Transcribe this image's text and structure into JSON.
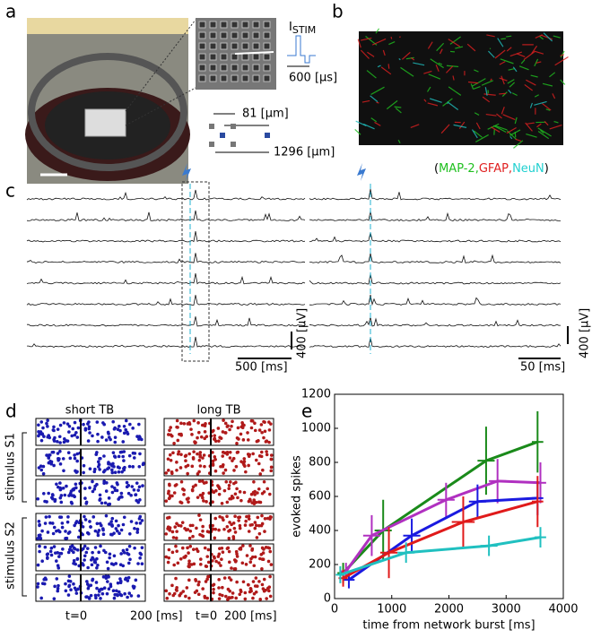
{
  "panels": {
    "a": {
      "label": "a",
      "stim_label": "I",
      "stim_sub": "STIM",
      "pulse": "600 [µs]",
      "pitch": "81 [µm]",
      "spacing": "1296 [µm]"
    },
    "b": {
      "label": "b",
      "stain_open": "(",
      "stains": [
        "MAP-2,",
        "GFAP,",
        "NeuN"
      ],
      "stain_close": ")"
    },
    "c": {
      "label": "c",
      "scale_left_x": "500 [ms]",
      "scale_left_y": "400 [µV]",
      "scale_right_x": "50 [ms]",
      "scale_right_y": "400 [µV]"
    },
    "d": {
      "label": "d",
      "col1": "short TB",
      "col2": "long TB",
      "group1": "stimulus S1",
      "group2": "stimulus S2",
      "t0_left": "t=0",
      "scale_left": "200 [ms]",
      "t0_right": "t=0",
      "scale_right": "200 [ms]"
    },
    "e": {
      "label": "e"
    }
  },
  "chart_data": {
    "type": "line",
    "xlabel": "time from network burst [ms]",
    "ylabel": "evoked spikes",
    "xlim": [
      0,
      4000
    ],
    "ylim": [
      0,
      1200
    ],
    "xticks": [
      0,
      1000,
      2000,
      3000,
      4000
    ],
    "yticks": [
      0,
      200,
      400,
      600,
      800,
      1000,
      1200
    ],
    "series": [
      {
        "color": "#1a8a1a",
        "x": [
          150,
          850,
          2650,
          3550
        ],
        "values": [
          150,
          400,
          810,
          920
        ],
        "xerr": [
          100,
          150,
          150,
          100
        ],
        "yerr": [
          60,
          180,
          200,
          180
        ]
      },
      {
        "color": "#b030c0",
        "x": [
          200,
          650,
          1950,
          2850,
          3600
        ],
        "values": [
          160,
          370,
          580,
          690,
          680
        ],
        "xerr": [
          100,
          150,
          150,
          150,
          100
        ],
        "yerr": [
          50,
          120,
          100,
          130,
          120
        ]
      },
      {
        "color": "#1a1ae0",
        "x": [
          250,
          1350,
          2500,
          3550
        ],
        "values": [
          110,
          370,
          570,
          590
        ],
        "xerr": [
          100,
          150,
          150,
          100
        ],
        "yerr": [
          50,
          100,
          100,
          100
        ]
      },
      {
        "color": "#e01a1a",
        "x": [
          150,
          950,
          2250,
          3550
        ],
        "values": [
          120,
          270,
          450,
          570
        ],
        "xerr": [
          80,
          150,
          200,
          100
        ],
        "yerr": [
          50,
          150,
          150,
          150
        ]
      },
      {
        "color": "#20c0c0",
        "x": [
          100,
          1250,
          2700,
          3600
        ],
        "values": [
          140,
          270,
          310,
          360
        ],
        "xerr": [
          80,
          150,
          150,
          100
        ],
        "yerr": [
          50,
          60,
          60,
          60
        ]
      }
    ]
  }
}
